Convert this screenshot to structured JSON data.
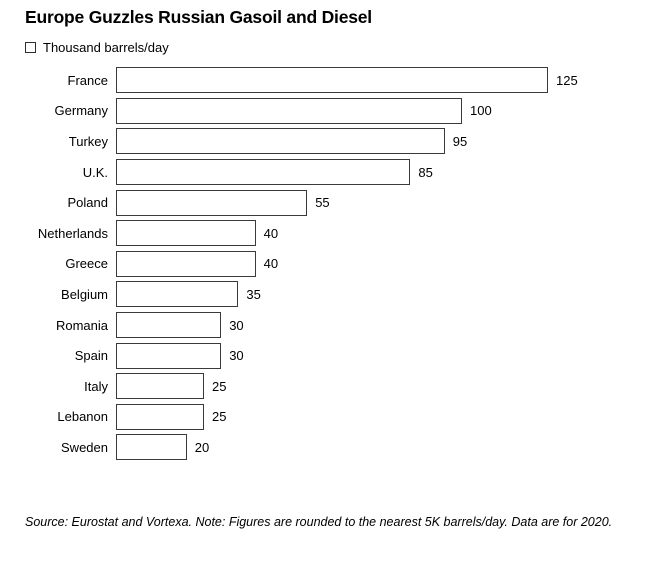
{
  "title": "Europe Guzzles Russian Gasoil and Diesel",
  "legend": {
    "label": "Thousand barrels/day",
    "swatch_fill": "#ffffff",
    "swatch_border": "#2e2e2e"
  },
  "chart_data": {
    "type": "bar",
    "orientation": "horizontal",
    "title": "Europe Guzzles Russian Gasoil and Diesel",
    "unit_label": "Thousand barrels/day",
    "categories": [
      "France",
      "Germany",
      "Turkey",
      "U.K.",
      "Poland",
      "Netherlands",
      "Greece",
      "Belgium",
      "Romania",
      "Spain",
      "Italy",
      "Lebanon",
      "Sweden"
    ],
    "values": [
      125,
      100,
      95,
      85,
      55,
      40,
      40,
      35,
      30,
      30,
      25,
      25,
      20
    ],
    "xlim": [
      0,
      125
    ],
    "grid": false,
    "legend_position": "top-left",
    "bar_fill": "#ffffff",
    "bar_border": "#3a3a3a",
    "value_labels_shown": true
  },
  "source_note": "Source: Eurostat and Vortexa. Note: Figures are rounded to the nearest 5K barrels/day. Data are for 2020."
}
